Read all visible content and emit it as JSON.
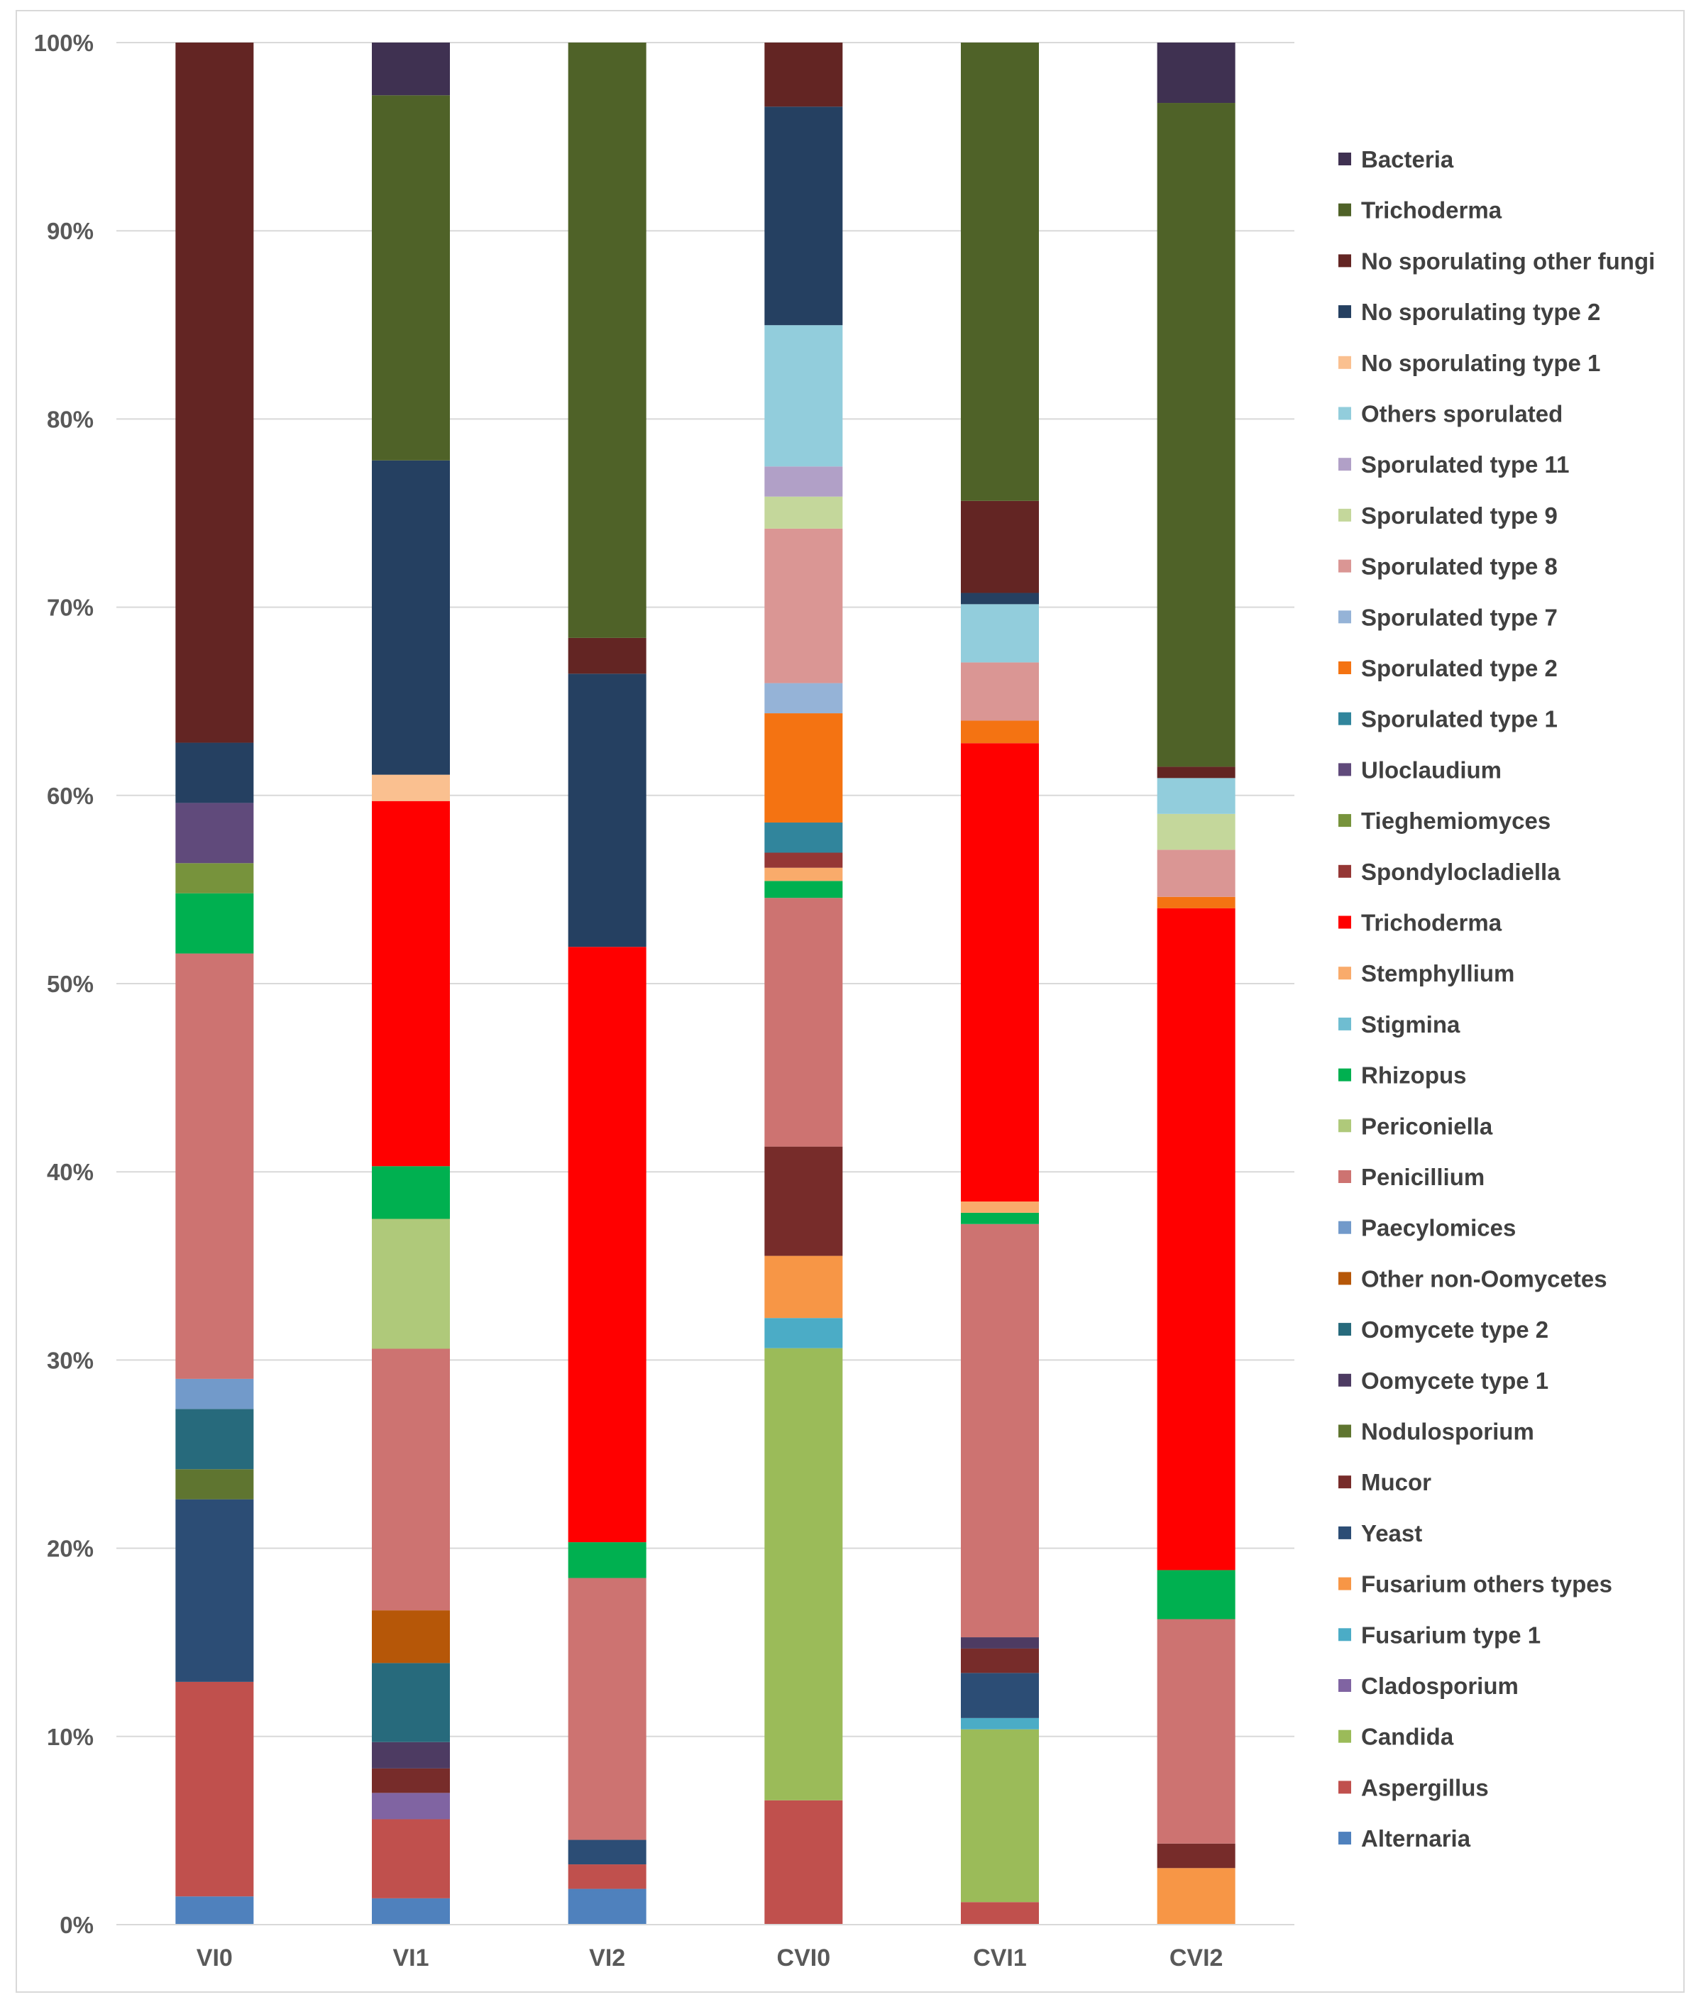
{
  "chart_data": {
    "type": "bar",
    "stacked": "percent",
    "title": "",
    "xlabel": "",
    "ylabel": "",
    "ylim": [
      0,
      100
    ],
    "y_ticks": [
      "0%",
      "10%",
      "20%",
      "30%",
      "40%",
      "50%",
      "60%",
      "70%",
      "80%",
      "90%",
      "100%"
    ],
    "categories": [
      "VI0",
      "VI1",
      "VI2",
      "CVI0",
      "CVI1",
      "CVI2"
    ],
    "legend_position": "right",
    "series": [
      {
        "name": "Alternaria",
        "color": "#4f81bd",
        "values": [
          1.5,
          1.4,
          1.9,
          0,
          0,
          0
        ]
      },
      {
        "name": "Aspergillus",
        "color": "#c0504d",
        "values": [
          11.4,
          4.2,
          1.3,
          6.6,
          1.2,
          0
        ]
      },
      {
        "name": "Candida",
        "color": "#9bbb59",
        "values": [
          0,
          0,
          0,
          24.0,
          9.2,
          0
        ]
      },
      {
        "name": "Cladosporium",
        "color": "#8064a2",
        "values": [
          0,
          1.4,
          0,
          0,
          0,
          0
        ]
      },
      {
        "name": "Fusarium type 1",
        "color": "#4bacc6",
        "values": [
          0,
          0,
          0,
          1.6,
          0.6,
          0
        ]
      },
      {
        "name": "Fusarium others types",
        "color": "#f79646",
        "values": [
          0,
          0,
          0,
          3.3,
          0,
          3.0
        ]
      },
      {
        "name": "Yeast",
        "color": "#2c4d75",
        "values": [
          9.7,
          0,
          1.3,
          0,
          2.4,
          0
        ]
      },
      {
        "name": "Mucor",
        "color": "#772c2a",
        "values": [
          0,
          1.3,
          0,
          5.8,
          1.3,
          1.3
        ]
      },
      {
        "name": "Nodulosporium",
        "color": "#5f7530",
        "values": [
          1.6,
          0,
          0,
          0,
          0,
          0
        ]
      },
      {
        "name": "Oomycete type 1",
        "color": "#4d3b62",
        "values": [
          0,
          1.4,
          0,
          0,
          0.6,
          0
        ]
      },
      {
        "name": "Oomycete type 2",
        "color": "#276a7c",
        "values": [
          3.2,
          4.2,
          0,
          0,
          0,
          0
        ]
      },
      {
        "name": "Other non-Oomycetes",
        "color": "#b65708",
        "values": [
          0,
          2.8,
          0,
          0,
          0,
          0
        ]
      },
      {
        "name": "Paecylomices",
        "color": "#729aca",
        "values": [
          1.6,
          0,
          0,
          0,
          0,
          0
        ]
      },
      {
        "name": "Penicillium",
        "color": "#cd7371",
        "values": [
          22.6,
          13.9,
          13.9,
          13.2,
          22.0,
          11.9
        ]
      },
      {
        "name": "Periconiella",
        "color": "#afc97a",
        "values": [
          0,
          6.9,
          0,
          0,
          0,
          0
        ]
      },
      {
        "name": "Rhizopus",
        "color": "#00b050",
        "values": [
          3.2,
          2.8,
          1.9,
          0.9,
          0.6,
          2.6
        ]
      },
      {
        "name": "Stigmina",
        "color": "#6fbdd1",
        "values": [
          0,
          0,
          0,
          0,
          0,
          0
        ]
      },
      {
        "name": "Stemphyllium",
        "color": "#f9ab6b",
        "values": [
          0,
          0,
          0,
          0.7,
          0.6,
          0
        ]
      },
      {
        "name": "Trichoderma",
        "color": "#ff0000",
        "values": [
          0,
          19.4,
          31.6,
          0,
          24.4,
          35.1
        ]
      },
      {
        "name": "Spondylocladiella",
        "color": "#953735",
        "values": [
          0,
          0,
          0,
          0.8,
          0,
          0
        ]
      },
      {
        "name": "Tieghemiomyces",
        "color": "#77933c",
        "values": [
          1.6,
          0,
          0,
          0,
          0,
          0
        ]
      },
      {
        "name": "Uloclaudium",
        "color": "#604a7b",
        "values": [
          3.2,
          0,
          0,
          0,
          0,
          0
        ]
      },
      {
        "name": "Sporulated type 1",
        "color": "#31859c",
        "values": [
          0,
          0,
          0,
          1.6,
          0,
          0
        ]
      },
      {
        "name": "Sporulated type 2",
        "color": "#f47312",
        "values": [
          0,
          0,
          0,
          5.8,
          1.2,
          0.6
        ]
      },
      {
        "name": "Sporulated type 7",
        "color": "#95b3d7",
        "values": [
          0,
          0,
          0,
          1.6,
          0,
          0
        ]
      },
      {
        "name": "Sporulated type 8",
        "color": "#da9694",
        "values": [
          0,
          0,
          0,
          8.2,
          3.1,
          2.5
        ]
      },
      {
        "name": "Sporulated type 9",
        "color": "#c4d79b",
        "values": [
          0,
          0,
          0,
          1.7,
          0,
          1.9
        ]
      },
      {
        "name": "Sporulated type 11",
        "color": "#b1a0c7",
        "values": [
          0,
          0,
          0,
          1.6,
          0,
          0
        ]
      },
      {
        "name": "Others sporulated",
        "color": "#92cddc",
        "values": [
          0,
          0,
          0,
          7.5,
          3.1,
          1.9
        ]
      },
      {
        "name": "No sporulating type 1",
        "color": "#fac090",
        "values": [
          0,
          1.4,
          0,
          0,
          0,
          0
        ]
      },
      {
        "name": "No sporulating type 2",
        "color": "#254061",
        "values": [
          3.2,
          16.7,
          14.5,
          11.6,
          0.6,
          0
        ]
      },
      {
        "name": "No sporulating other fungi",
        "color": "#632523",
        "values": [
          37.2,
          0,
          1.9,
          3.4,
          4.9,
          0.6
        ]
      },
      {
        "name": "Trichoderma",
        "color": "#4f6228",
        "values": [
          0,
          19.4,
          31.6,
          0,
          24.4,
          35.2
        ]
      },
      {
        "name": "Bacteria",
        "color": "#3f3151",
        "values": [
          0,
          2.8,
          0,
          0,
          0,
          3.2
        ]
      }
    ]
  }
}
